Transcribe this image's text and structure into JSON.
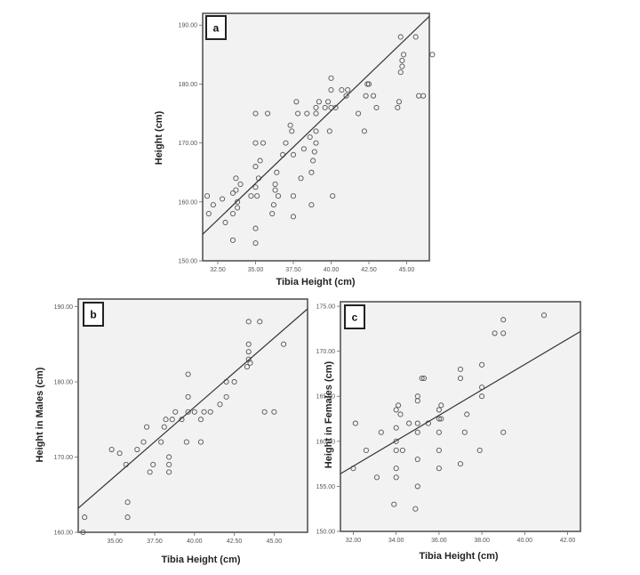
{
  "chart_data": [
    {
      "type": "scatter",
      "panel_label": "a",
      "xlabel": "Tibia Height (cm)",
      "ylabel": "Height (cm)",
      "xlim": [
        31.5,
        46.5
      ],
      "ylim": [
        150,
        192
      ],
      "x_ticks": [
        "32.50",
        "35.00",
        "37.50",
        "40.00",
        "42.50",
        "45.00"
      ],
      "y_ticks": [
        "150.00",
        "160.00",
        "170.00",
        "180.00",
        "190.00"
      ],
      "fit_line": {
        "x": [
          31.5,
          46.5
        ],
        "y": [
          154.5,
          191.5
        ]
      },
      "points": [
        {
          "x": 31.8,
          "y": 161
        },
        {
          "x": 31.9,
          "y": 158
        },
        {
          "x": 32.2,
          "y": 159.5
        },
        {
          "x": 32.8,
          "y": 160.5
        },
        {
          "x": 33.0,
          "y": 156.5
        },
        {
          "x": 33.5,
          "y": 153.5
        },
        {
          "x": 33.5,
          "y": 158
        },
        {
          "x": 33.5,
          "y": 161.5
        },
        {
          "x": 33.7,
          "y": 162
        },
        {
          "x": 33.7,
          "y": 164
        },
        {
          "x": 33.8,
          "y": 160
        },
        {
          "x": 33.8,
          "y": 159
        },
        {
          "x": 34.0,
          "y": 163
        },
        {
          "x": 34.7,
          "y": 161
        },
        {
          "x": 35.0,
          "y": 155.5
        },
        {
          "x": 35.0,
          "y": 153
        },
        {
          "x": 35.0,
          "y": 162.5
        },
        {
          "x": 35.0,
          "y": 166
        },
        {
          "x": 35.0,
          "y": 170
        },
        {
          "x": 35.0,
          "y": 175
        },
        {
          "x": 35.1,
          "y": 161
        },
        {
          "x": 35.2,
          "y": 164
        },
        {
          "x": 35.3,
          "y": 167
        },
        {
          "x": 35.5,
          "y": 170
        },
        {
          "x": 35.8,
          "y": 175
        },
        {
          "x": 36.1,
          "y": 158
        },
        {
          "x": 36.2,
          "y": 159.5
        },
        {
          "x": 36.3,
          "y": 162
        },
        {
          "x": 36.3,
          "y": 163
        },
        {
          "x": 36.4,
          "y": 165
        },
        {
          "x": 36.5,
          "y": 161
        },
        {
          "x": 36.8,
          "y": 168
        },
        {
          "x": 37.0,
          "y": 170
        },
        {
          "x": 37.3,
          "y": 173
        },
        {
          "x": 37.4,
          "y": 172
        },
        {
          "x": 37.5,
          "y": 157.5
        },
        {
          "x": 37.5,
          "y": 161
        },
        {
          "x": 37.5,
          "y": 168
        },
        {
          "x": 37.7,
          "y": 177
        },
        {
          "x": 37.8,
          "y": 175
        },
        {
          "x": 38.0,
          "y": 164
        },
        {
          "x": 38.2,
          "y": 169
        },
        {
          "x": 38.4,
          "y": 175
        },
        {
          "x": 38.6,
          "y": 171
        },
        {
          "x": 38.7,
          "y": 159.5
        },
        {
          "x": 38.7,
          "y": 165
        },
        {
          "x": 38.8,
          "y": 167
        },
        {
          "x": 38.9,
          "y": 168.5
        },
        {
          "x": 39.0,
          "y": 170
        },
        {
          "x": 39.0,
          "y": 172
        },
        {
          "x": 39.0,
          "y": 175
        },
        {
          "x": 39.0,
          "y": 176
        },
        {
          "x": 39.2,
          "y": 177
        },
        {
          "x": 39.6,
          "y": 176
        },
        {
          "x": 39.8,
          "y": 177
        },
        {
          "x": 39.9,
          "y": 172
        },
        {
          "x": 40.0,
          "y": 179
        },
        {
          "x": 40.0,
          "y": 176
        },
        {
          "x": 40.0,
          "y": 181
        },
        {
          "x": 40.1,
          "y": 161
        },
        {
          "x": 40.3,
          "y": 176
        },
        {
          "x": 40.7,
          "y": 179
        },
        {
          "x": 41.0,
          "y": 178
        },
        {
          "x": 41.1,
          "y": 179
        },
        {
          "x": 41.8,
          "y": 175
        },
        {
          "x": 42.2,
          "y": 172
        },
        {
          "x": 42.3,
          "y": 178
        },
        {
          "x": 42.4,
          "y": 180
        },
        {
          "x": 42.5,
          "y": 180
        },
        {
          "x": 42.8,
          "y": 178
        },
        {
          "x": 43.0,
          "y": 176
        },
        {
          "x": 44.4,
          "y": 176
        },
        {
          "x": 44.5,
          "y": 177
        },
        {
          "x": 44.6,
          "y": 188
        },
        {
          "x": 44.6,
          "y": 182
        },
        {
          "x": 44.7,
          "y": 183
        },
        {
          "x": 44.7,
          "y": 184
        },
        {
          "x": 44.8,
          "y": 185
        },
        {
          "x": 45.6,
          "y": 188
        },
        {
          "x": 45.8,
          "y": 178
        },
        {
          "x": 46.1,
          "y": 178
        },
        {
          "x": 46.7,
          "y": 185
        }
      ]
    },
    {
      "type": "scatter",
      "panel_label": "b",
      "xlabel": "Tibia Height (cm)",
      "ylabel": "Height in Males (cm)",
      "xlim": [
        32.7,
        47.1
      ],
      "ylim": [
        160,
        191
      ],
      "x_ticks": [
        "35.00",
        "37.50",
        "40.00",
        "42.50",
        "45.00"
      ],
      "y_ticks": [
        "160.00",
        "170.00",
        "180.00",
        "190.00"
      ],
      "fit_line": {
        "x": [
          32.7,
          47.1
        ],
        "y": [
          163.2,
          189.7
        ]
      },
      "points": [
        {
          "x": 33.1,
          "y": 162
        },
        {
          "x": 33.0,
          "y": 160
        },
        {
          "x": 34.8,
          "y": 171
        },
        {
          "x": 35.3,
          "y": 170.5
        },
        {
          "x": 35.7,
          "y": 169
        },
        {
          "x": 35.8,
          "y": 164
        },
        {
          "x": 35.8,
          "y": 162
        },
        {
          "x": 36.4,
          "y": 171
        },
        {
          "x": 36.8,
          "y": 172
        },
        {
          "x": 37.0,
          "y": 174
        },
        {
          "x": 37.2,
          "y": 168
        },
        {
          "x": 37.4,
          "y": 169
        },
        {
          "x": 37.9,
          "y": 172
        },
        {
          "x": 38.1,
          "y": 174
        },
        {
          "x": 38.2,
          "y": 175
        },
        {
          "x": 38.4,
          "y": 170
        },
        {
          "x": 38.4,
          "y": 169
        },
        {
          "x": 38.4,
          "y": 168
        },
        {
          "x": 38.6,
          "y": 175
        },
        {
          "x": 38.8,
          "y": 176
        },
        {
          "x": 39.2,
          "y": 175
        },
        {
          "x": 39.5,
          "y": 172
        },
        {
          "x": 39.6,
          "y": 176
        },
        {
          "x": 39.6,
          "y": 178
        },
        {
          "x": 39.6,
          "y": 181
        },
        {
          "x": 40.0,
          "y": 176
        },
        {
          "x": 40.4,
          "y": 175
        },
        {
          "x": 40.6,
          "y": 176
        },
        {
          "x": 41.0,
          "y": 176
        },
        {
          "x": 40.4,
          "y": 172
        },
        {
          "x": 41.6,
          "y": 177
        },
        {
          "x": 42.0,
          "y": 178
        },
        {
          "x": 42.0,
          "y": 180
        },
        {
          "x": 42.5,
          "y": 180
        },
        {
          "x": 43.3,
          "y": 182
        },
        {
          "x": 43.4,
          "y": 183
        },
        {
          "x": 43.4,
          "y": 184
        },
        {
          "x": 43.4,
          "y": 185
        },
        {
          "x": 43.4,
          "y": 188
        },
        {
          "x": 43.5,
          "y": 182.5
        },
        {
          "x": 44.1,
          "y": 188
        },
        {
          "x": 44.4,
          "y": 176
        },
        {
          "x": 45.0,
          "y": 176
        },
        {
          "x": 45.6,
          "y": 185
        }
      ]
    },
    {
      "type": "scatter",
      "panel_label": "c",
      "xlabel": "Tibia Height (cm)",
      "ylabel": "Height in Females (cm)",
      "xlim": [
        31.4,
        42.6
      ],
      "ylim": [
        150,
        175.5
      ],
      "x_ticks": [
        "32.00",
        "34.00",
        "36.00",
        "38.00",
        "40.00",
        "42.00"
      ],
      "y_ticks": [
        "150.00",
        "155.00",
        "160.00",
        "165.00",
        "170.00",
        "175.00"
      ],
      "fit_line": {
        "x": [
          31.4,
          42.6
        ],
        "y": [
          156.4,
          172.2
        ]
      },
      "points": [
        {
          "x": 32.0,
          "y": 157
        },
        {
          "x": 32.1,
          "y": 162
        },
        {
          "x": 32.6,
          "y": 159
        },
        {
          "x": 33.1,
          "y": 156
        },
        {
          "x": 33.3,
          "y": 161
        },
        {
          "x": 33.9,
          "y": 153
        },
        {
          "x": 34.0,
          "y": 156
        },
        {
          "x": 34.0,
          "y": 157
        },
        {
          "x": 34.0,
          "y": 159
        },
        {
          "x": 34.0,
          "y": 160
        },
        {
          "x": 34.0,
          "y": 161.5
        },
        {
          "x": 34.0,
          "y": 163.5
        },
        {
          "x": 34.1,
          "y": 164
        },
        {
          "x": 34.2,
          "y": 163
        },
        {
          "x": 34.3,
          "y": 159
        },
        {
          "x": 34.6,
          "y": 162
        },
        {
          "x": 34.9,
          "y": 152.5
        },
        {
          "x": 35.0,
          "y": 155
        },
        {
          "x": 35.0,
          "y": 158
        },
        {
          "x": 35.0,
          "y": 161
        },
        {
          "x": 35.0,
          "y": 162
        },
        {
          "x": 35.0,
          "y": 164.5
        },
        {
          "x": 35.0,
          "y": 165
        },
        {
          "x": 35.2,
          "y": 167
        },
        {
          "x": 35.3,
          "y": 167
        },
        {
          "x": 35.5,
          "y": 162
        },
        {
          "x": 36.0,
          "y": 157
        },
        {
          "x": 36.0,
          "y": 159
        },
        {
          "x": 36.0,
          "y": 161
        },
        {
          "x": 36.0,
          "y": 162.5
        },
        {
          "x": 36.0,
          "y": 163.5
        },
        {
          "x": 36.1,
          "y": 162.5
        },
        {
          "x": 36.1,
          "y": 164
        },
        {
          "x": 37.0,
          "y": 157.5
        },
        {
          "x": 37.0,
          "y": 167
        },
        {
          "x": 37.0,
          "y": 168
        },
        {
          "x": 37.2,
          "y": 161
        },
        {
          "x": 37.3,
          "y": 163
        },
        {
          "x": 37.9,
          "y": 159
        },
        {
          "x": 38.0,
          "y": 165
        },
        {
          "x": 38.0,
          "y": 166
        },
        {
          "x": 38.0,
          "y": 168.5
        },
        {
          "x": 38.6,
          "y": 172
        },
        {
          "x": 39.0,
          "y": 161
        },
        {
          "x": 39.0,
          "y": 172
        },
        {
          "x": 39.0,
          "y": 173.5
        },
        {
          "x": 40.9,
          "y": 174
        }
      ]
    }
  ]
}
